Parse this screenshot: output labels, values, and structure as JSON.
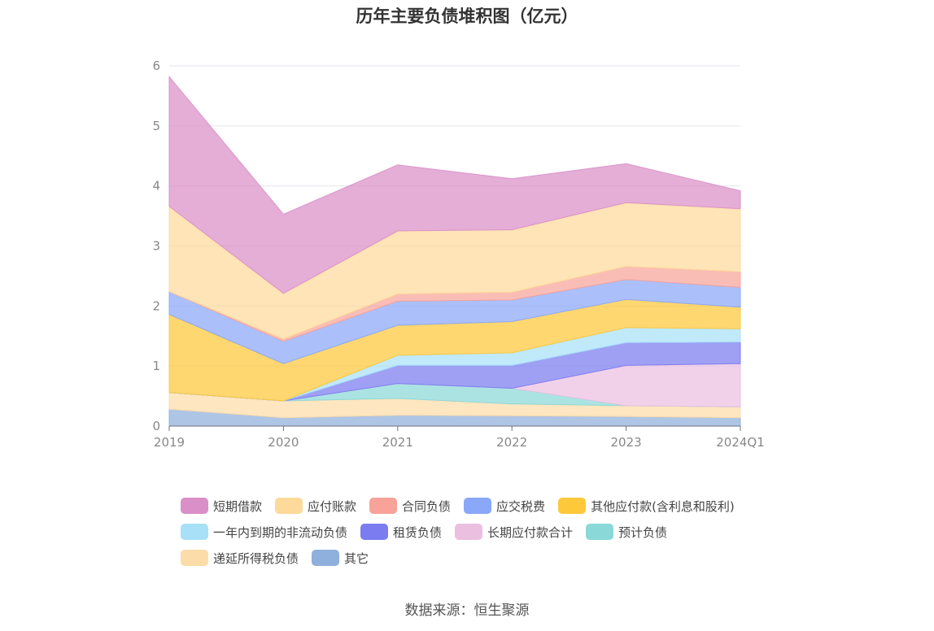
{
  "chart_data": {
    "type": "area",
    "title": "历年主要负债堆积图（亿元）",
    "xlabel": "",
    "ylabel": "",
    "categories": [
      "2019",
      "2020",
      "2021",
      "2022",
      "2023",
      "2024Q1"
    ],
    "ylim": [
      0,
      6
    ],
    "yticks": [
      0,
      1,
      2,
      3,
      4,
      5,
      6
    ],
    "grid": true,
    "legend_position": "bottom",
    "stacked": true,
    "series": [
      {
        "name": "其它",
        "color": "#8fafdc",
        "values": [
          0.28,
          0.14,
          0.18,
          0.17,
          0.16,
          0.14
        ]
      },
      {
        "name": "递延所得税负债",
        "color": "#fcdca8",
        "values": [
          0.28,
          0.28,
          0.28,
          0.2,
          0.18,
          0.18
        ]
      },
      {
        "name": "预计负债",
        "color": "#8ad8d8",
        "values": [
          0.0,
          0.0,
          0.25,
          0.26,
          0.0,
          0.0
        ]
      },
      {
        "name": "长期应付款合计",
        "color": "#ebbfe0",
        "values": [
          0.0,
          0.0,
          0.0,
          0.0,
          0.67,
          0.72
        ]
      },
      {
        "name": "租赁负债",
        "color": "#7a7cf0",
        "values": [
          0.0,
          0.0,
          0.3,
          0.38,
          0.38,
          0.36
        ]
      },
      {
        "name": "一年内到期的非流动负债",
        "color": "#a8e0f8",
        "values": [
          0.0,
          0.0,
          0.17,
          0.21,
          0.25,
          0.22
        ]
      },
      {
        "name": "其他应付款(含利息和股利)",
        "color": "#fdc83a",
        "values": [
          1.3,
          0.62,
          0.5,
          0.52,
          0.47,
          0.36
        ]
      },
      {
        "name": "应交税费",
        "color": "#8aa8fa",
        "values": [
          0.38,
          0.37,
          0.4,
          0.36,
          0.33,
          0.33
        ]
      },
      {
        "name": "合同负债",
        "color": "#f8a39a",
        "values": [
          0.0,
          0.04,
          0.12,
          0.13,
          0.22,
          0.26
        ]
      },
      {
        "name": "应付账款",
        "color": "#fdd99a",
        "values": [
          1.42,
          0.76,
          1.05,
          1.04,
          1.06,
          1.05
        ]
      },
      {
        "name": "短期借款",
        "color": "#da8fc8",
        "values": [
          2.16,
          1.32,
          1.1,
          0.85,
          0.65,
          0.3
        ]
      }
    ],
    "legend_rows": [
      [
        "短期借款",
        "应付账款",
        "合同负债",
        "应交税费",
        "其他应付款(含利息和股利)"
      ],
      [
        "一年内到期的非流动负债",
        "租赁负债",
        "长期应付款合计",
        "预计负债"
      ],
      [
        "递延所得税负债",
        "其它"
      ]
    ]
  },
  "source": "数据来源：恒生聚源"
}
